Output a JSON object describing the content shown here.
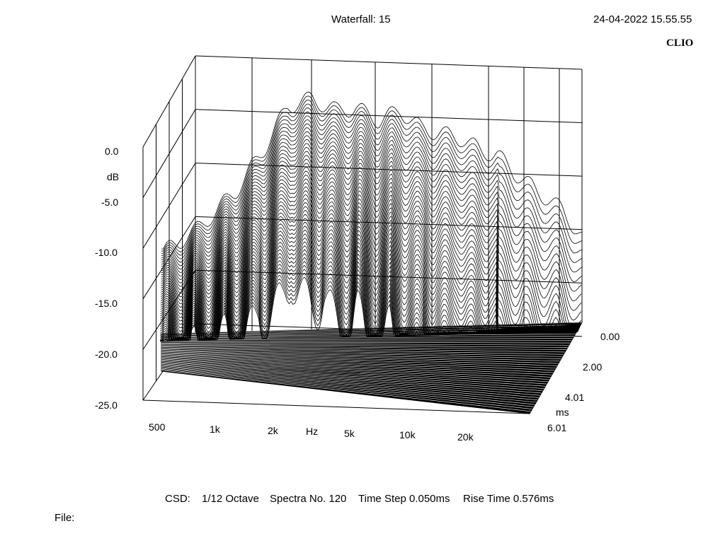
{
  "header": {
    "title": "Waterfall: 15",
    "timestamp": "24-04-2022 15.55.55",
    "brand": "CLIO"
  },
  "footer": {
    "csd_label": "CSD:",
    "resolution": "1/12 Octave",
    "spectra": "Spectra No. 120",
    "time_step": "Time Step 0.050ms",
    "rise_time": "Rise Time 0.576ms",
    "file_label": "File:"
  },
  "colors": {
    "background": "#ffffff",
    "foreground": "#000000",
    "floor": "#000000"
  },
  "chart_data": {
    "type": "waterfall",
    "title": "Waterfall: 15",
    "x_axis": {
      "unit": "Hz",
      "scale": "log",
      "ticks": [
        "500",
        "1k",
        "2k",
        "5k",
        "10k",
        "20k"
      ]
    },
    "y_axis": {
      "unit": "dB",
      "range": [
        -25.0,
        0.0
      ],
      "ticks": [
        "0.0",
        "-5.0",
        "-10.0",
        "-15.0",
        "-20.0",
        "-25.0"
      ]
    },
    "z_axis": {
      "unit": "ms",
      "range": [
        0.0,
        6.01
      ],
      "ticks": [
        "0.00",
        "2.00",
        "4.01",
        "6.01"
      ]
    },
    "spectra_count": 120,
    "time_step_ms": 0.05,
    "rise_time_ms": 0.576,
    "resolution": "1/12 Octave",
    "front_spectrum_db": [
      {
        "hz": 500,
        "db": -12.5
      },
      {
        "hz": 700,
        "db": -10.0
      },
      {
        "hz": 1000,
        "db": -6.0
      },
      {
        "hz": 1300,
        "db": -1.5
      },
      {
        "hz": 1600,
        "db": 2.8
      },
      {
        "hz": 2000,
        "db": 3.5
      },
      {
        "hz": 2500,
        "db": 2.2
      },
      {
        "hz": 3000,
        "db": 2.4
      },
      {
        "hz": 3700,
        "db": 1.0
      },
      {
        "hz": 4500,
        "db": 2.0
      },
      {
        "hz": 5500,
        "db": 0.0
      },
      {
        "hz": 6500,
        "db": -0.5
      },
      {
        "hz": 8000,
        "db": -1.2
      },
      {
        "hz": 9500,
        "db": -2.5
      },
      {
        "hz": 11000,
        "db": -3.0
      },
      {
        "hz": 13000,
        "db": -5.0
      },
      {
        "hz": 16000,
        "db": -7.0
      },
      {
        "hz": 20000,
        "db": -9.0
      },
      {
        "hz": 24000,
        "db": -12.0
      }
    ]
  }
}
